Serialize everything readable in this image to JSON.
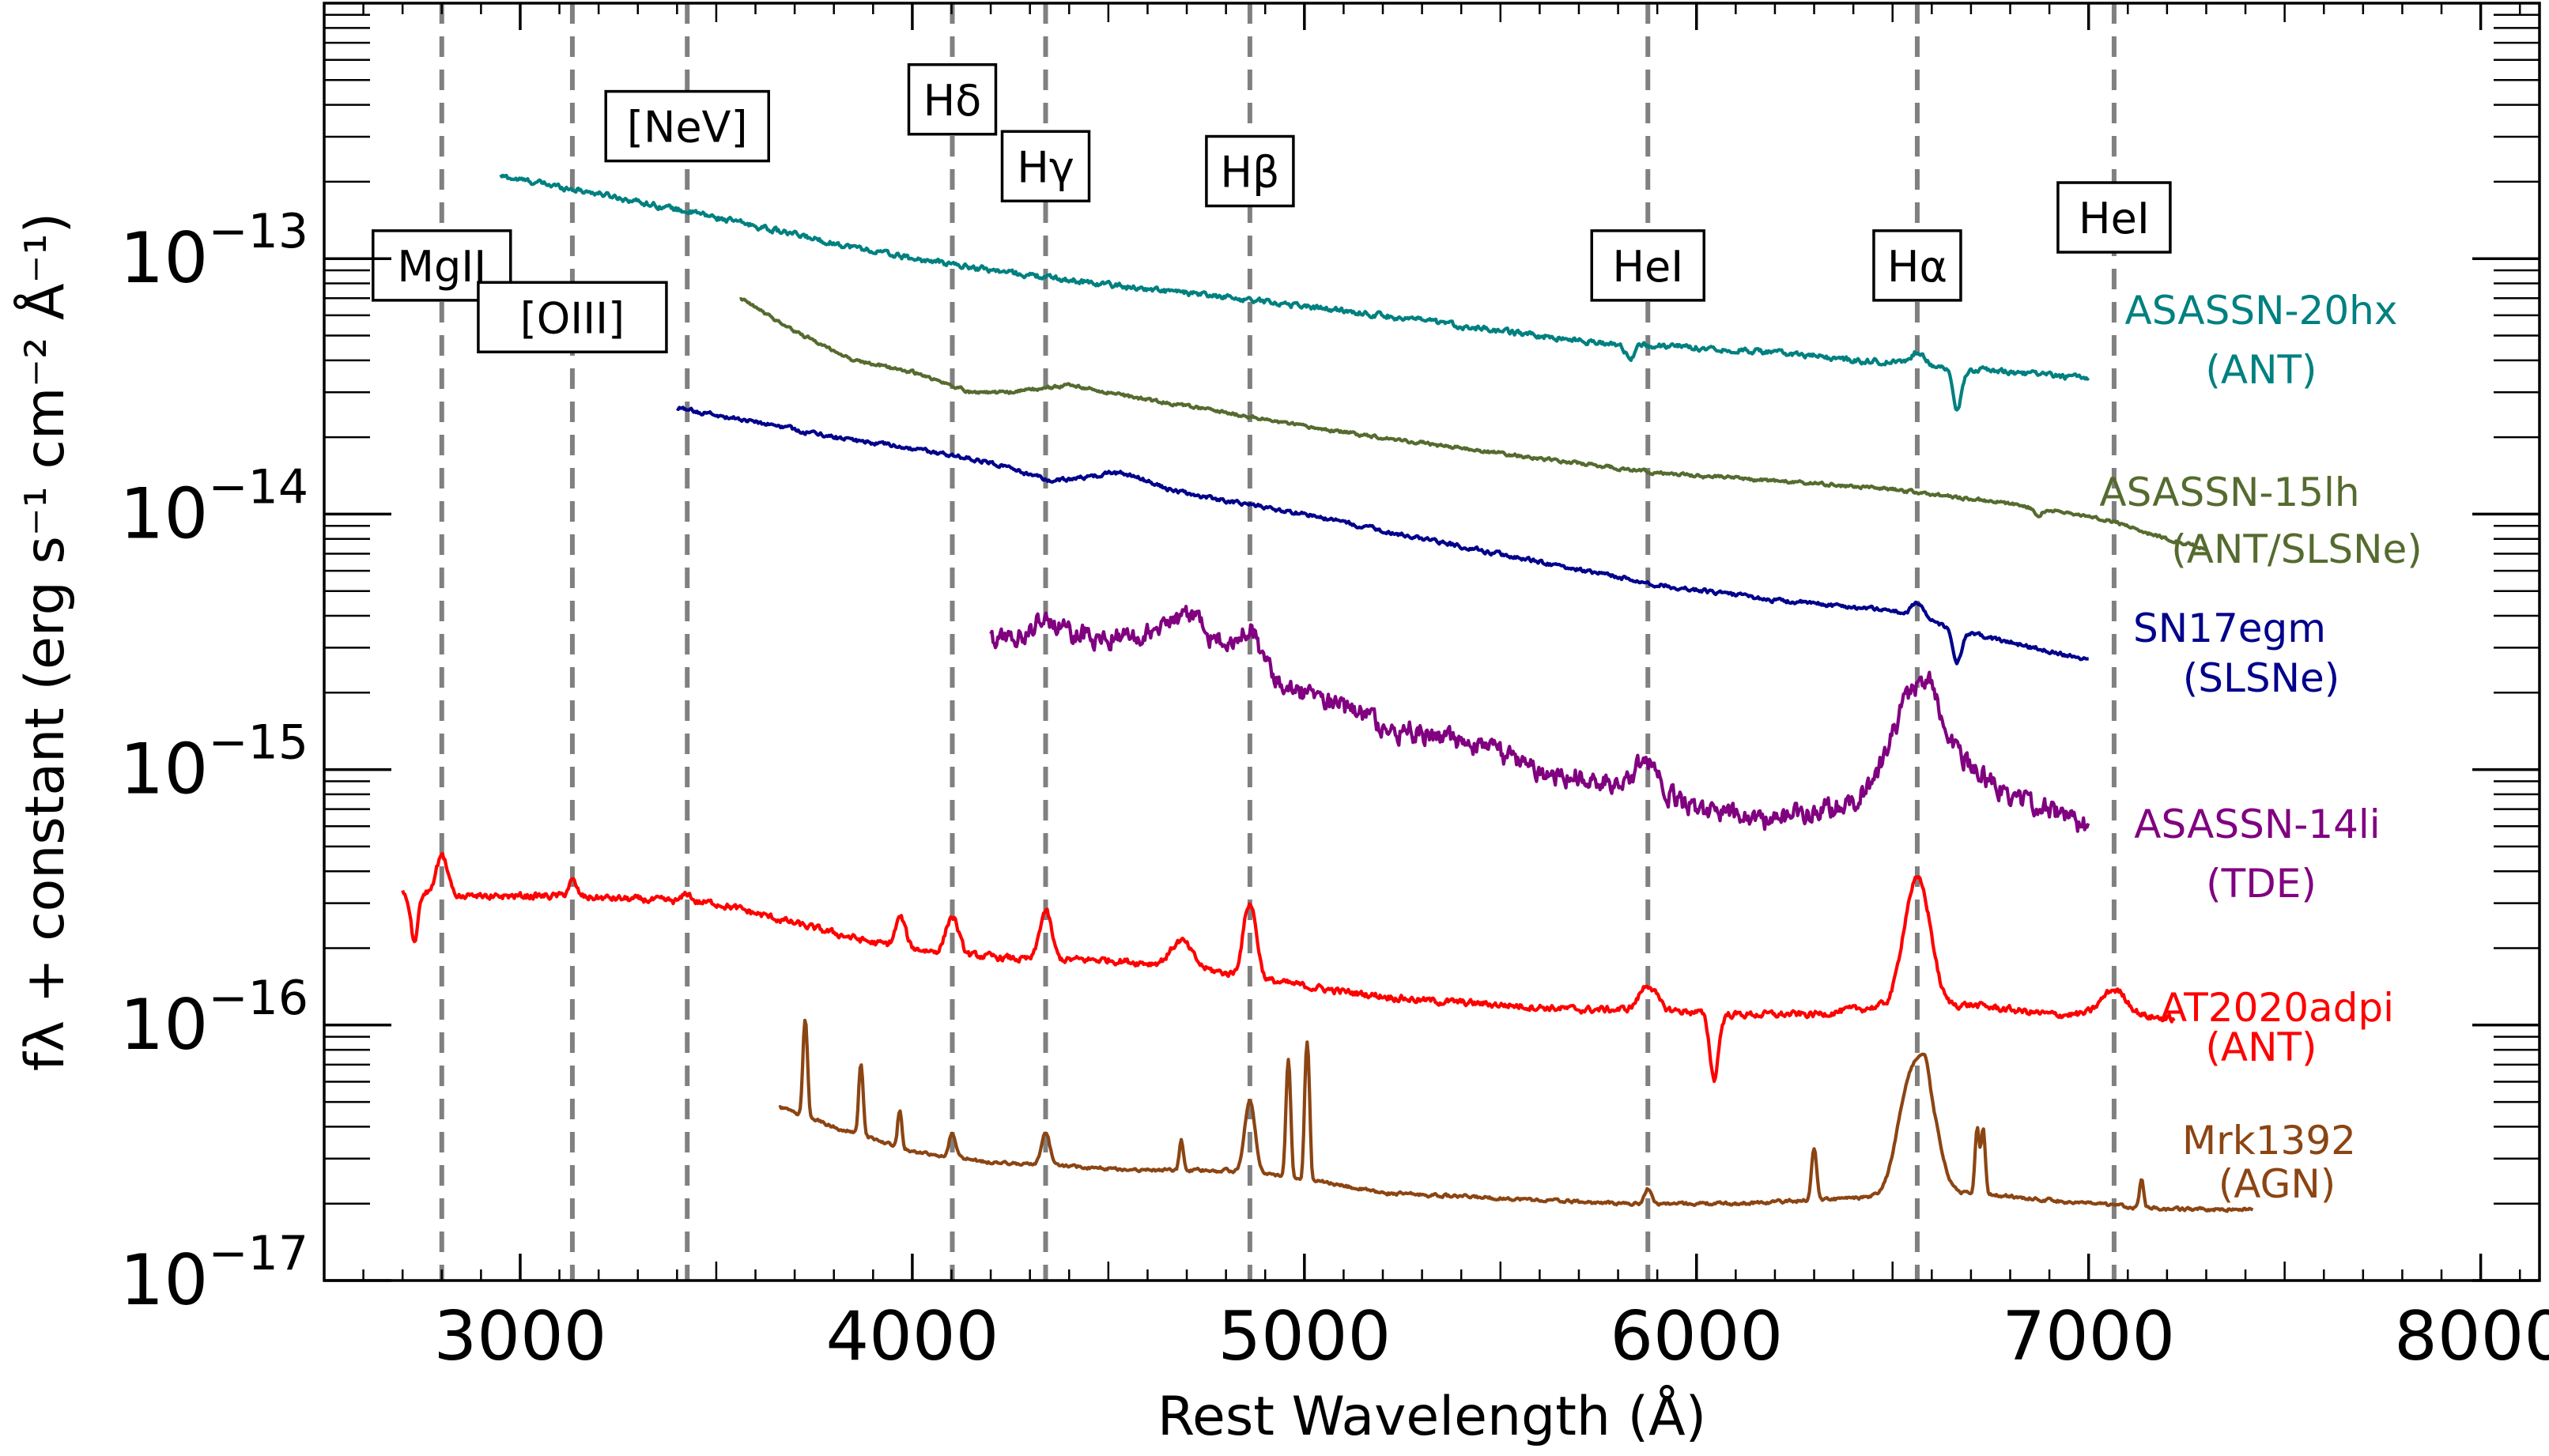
{
  "chart_data": {
    "type": "line",
    "xlabel": "Rest Wavelength (Å)",
    "ylabel": "fλ + constant (erg s⁻¹ cm⁻² Å⁻¹)",
    "xlim": [
      2500,
      8150
    ],
    "ylim": [
      1e-17,
      1e-12
    ],
    "yscale": "log",
    "grid": false,
    "legend": "none",
    "x_ticks": [
      3000,
      4000,
      5000,
      6000,
      7000,
      8000
    ],
    "y_ticks": [
      {
        "value": 1e-13,
        "mantissa": "10",
        "exponent": "−13"
      },
      {
        "value": 1e-14,
        "mantissa": "10",
        "exponent": "−14"
      },
      {
        "value": 1e-15,
        "mantissa": "10",
        "exponent": "−15"
      },
      {
        "value": 1e-16,
        "mantissa": "10",
        "exponent": "−16"
      },
      {
        "value": 1e-17,
        "mantissa": "10",
        "exponent": "−17"
      }
    ],
    "line_markers": [
      {
        "label": "MgII",
        "x": 2800,
        "label_y": 9.4e-14
      },
      {
        "label": "[OIII]",
        "x": 3133,
        "label_y": 5.9e-14
      },
      {
        "label": "[NeV]",
        "x": 3426,
        "label_y": 3.3e-13
      },
      {
        "label": "Hδ",
        "x": 4102,
        "label_y": 4.2e-13
      },
      {
        "label": "Hγ",
        "x": 4340,
        "label_y": 2.3e-13
      },
      {
        "label": "Hβ",
        "x": 4861,
        "label_y": 2.2e-13
      },
      {
        "label": "HeI",
        "x": 5876,
        "label_y": 9.4e-14
      },
      {
        "label": "Hα",
        "x": 6563,
        "label_y": 9.4e-14
      },
      {
        "label": "HeI",
        "x": 7065,
        "label_y": 1.45e-13
      }
    ],
    "series": [
      {
        "name": "ASASSN-20hx",
        "class": "(ANT)",
        "color": "#008080",
        "noise": 0.02,
        "x": [
          2950,
          3200,
          3500,
          3800,
          4000,
          4300,
          4600,
          4900,
          5200,
          5500,
          5800,
          6000,
          6200,
          6400,
          6550,
          6700,
          7000
        ],
        "y": [
          2.1e-13,
          1.8e-13,
          1.45e-13,
          1.15e-13,
          1e-13,
          8.6e-14,
          7.6e-14,
          6.8e-14,
          6e-14,
          5.2e-14,
          4.6e-14,
          4.5e-14,
          4.3e-14,
          4e-14,
          3.9e-14,
          3.7e-14,
          3.4e-14
        ],
        "features": [
          {
            "x": 6665,
            "w": 12,
            "amp": -0.32
          },
          {
            "x": 5830,
            "w": 10,
            "amp": -0.12
          },
          {
            "x": 6565,
            "w": 15,
            "amp": 0.12
          }
        ]
      },
      {
        "name": "ASASSN-15lh",
        "class": "(ANT/SLSNe)",
        "color": "#556b2f",
        "noise": 0.012,
        "x": [
          3560,
          3700,
          3850,
          4000,
          4150,
          4250,
          4400,
          4600,
          4800,
          5000,
          5300,
          5600,
          5900,
          6200,
          6500,
          6800,
          7050,
          7200,
          7300
        ],
        "y": [
          7e-14,
          5.2e-14,
          4e-14,
          3.6e-14,
          3e-14,
          3e-14,
          3.2e-14,
          2.8e-14,
          2.5e-14,
          2.2e-14,
          1.9e-14,
          1.65e-14,
          1.45e-14,
          1.35e-14,
          1.25e-14,
          1.1e-14,
          9.5e-15,
          8e-15,
          7.3e-15
        ],
        "features": [
          {
            "x": 6870,
            "w": 10,
            "amp": -0.07
          }
        ]
      },
      {
        "name": "SN17egm",
        "class": "(SLSNe)",
        "color": "#00008b",
        "noise": 0.015,
        "x": [
          3400,
          3600,
          3800,
          4000,
          4200,
          4350,
          4500,
          4700,
          5000,
          5300,
          5600,
          5900,
          6200,
          6500,
          6700,
          7000
        ],
        "y": [
          2.6e-14,
          2.3e-14,
          2e-14,
          1.8e-14,
          1.6e-14,
          1.35e-14,
          1.4e-14,
          1.2e-14,
          1e-14,
          8e-15,
          6.5e-15,
          5.3e-15,
          4.6e-15,
          4.2e-15,
          3.4e-15,
          2.7e-15
        ],
        "features": [
          {
            "x": 6565,
            "w": 15,
            "amp": 0.15
          },
          {
            "x": 6665,
            "w": 12,
            "amp": -0.25
          },
          {
            "x": 4550,
            "w": 50,
            "amp": 0.06
          }
        ]
      },
      {
        "name": "ASASSN-14li",
        "class": "(TDE)",
        "color": "#800080",
        "noise": 0.08,
        "x": [
          4200,
          4400,
          4600,
          4800,
          5000,
          5200,
          5400,
          5600,
          5800,
          6000,
          6200,
          6400,
          6600,
          6800,
          7000
        ],
        "y": [
          3.3e-15,
          3.4e-15,
          3.3e-15,
          3.1e-15,
          2e-15,
          1.5e-15,
          1.3e-15,
          1e-15,
          9e-16,
          7e-16,
          6.3e-16,
          7.5e-16,
          1.3e-15,
          8e-16,
          6e-16
        ],
        "features": [
          {
            "x": 4340,
            "w": 25,
            "amp": 0.2
          },
          {
            "x": 4686,
            "w": 50,
            "amp": 0.25
          },
          {
            "x": 4861,
            "w": 22,
            "amp": 0.3
          },
          {
            "x": 5876,
            "w": 30,
            "amp": 0.3
          },
          {
            "x": 6563,
            "w": 50,
            "amp": 0.85
          }
        ]
      },
      {
        "name": "AT2020adpi",
        "class": "(ANT)",
        "color": "#ff0000",
        "noise": 0.025,
        "x": [
          2700,
          2900,
          3100,
          3300,
          3500,
          3700,
          3900,
          4100,
          4300,
          4500,
          4700,
          4900,
          5100,
          5300,
          5500,
          5700,
          5900,
          6100,
          6300,
          6500,
          6700,
          6900,
          7100,
          7220
        ],
        "y": [
          3.3e-16,
          3.2e-16,
          3.2e-16,
          3.1e-16,
          3e-16,
          2.5e-16,
          2.1e-16,
          1.9e-16,
          1.8e-16,
          1.8e-16,
          1.7e-16,
          1.5e-16,
          1.35e-16,
          1.25e-16,
          1.2e-16,
          1.15e-16,
          1.15e-16,
          1.1e-16,
          1.1e-16,
          1.2e-16,
          1.2e-16,
          1.1e-16,
          1.1e-16,
          1.05e-16
        ],
        "features": [
          {
            "x": 2730,
            "w": 10,
            "amp": -0.35
          },
          {
            "x": 2800,
            "w": 14,
            "amp": 0.4
          },
          {
            "x": 3133,
            "w": 10,
            "amp": 0.15
          },
          {
            "x": 3426,
            "w": 10,
            "amp": 0.08
          },
          {
            "x": 3970,
            "w": 12,
            "amp": 0.3
          },
          {
            "x": 4102,
            "w": 15,
            "amp": 0.4
          },
          {
            "x": 4340,
            "w": 14,
            "amp": 0.55
          },
          {
            "x": 4686,
            "w": 25,
            "amp": 0.25
          },
          {
            "x": 4861,
            "w": 15,
            "amp": 0.95
          },
          {
            "x": 5876,
            "w": 20,
            "amp": 0.25
          },
          {
            "x": 6045,
            "w": 12,
            "amp": -0.45
          },
          {
            "x": 6563,
            "w": 28,
            "amp": 2.1
          },
          {
            "x": 7065,
            "w": 30,
            "amp": 0.25
          }
        ]
      },
      {
        "name": "Mrk1392",
        "class": "(AGN)",
        "color": "#8b4513",
        "noise": 0.012,
        "x": [
          3660,
          3800,
          4000,
          4200,
          4400,
          4600,
          4800,
          5000,
          5200,
          5500,
          5800,
          6100,
          6400,
          6700,
          7000,
          7200,
          7420
        ],
        "y": [
          4.8e-17,
          4e-17,
          3.2e-17,
          2.9e-17,
          2.8e-17,
          2.7e-17,
          2.7e-17,
          2.5e-17,
          2.2e-17,
          2.1e-17,
          2e-17,
          2e-17,
          2.1e-17,
          2.2e-17,
          2e-17,
          1.9e-17,
          1.9e-17
        ],
        "features": [
          {
            "x": 3727,
            "w": 5,
            "amp": 1.4
          },
          {
            "x": 3869,
            "w": 5,
            "amp": 0.9
          },
          {
            "x": 3968,
            "w": 5,
            "amp": 0.4
          },
          {
            "x": 4102,
            "w": 8,
            "amp": 0.25
          },
          {
            "x": 4340,
            "w": 10,
            "amp": 0.35
          },
          {
            "x": 4686,
            "w": 5,
            "amp": 0.3
          },
          {
            "x": 4861,
            "w": 12,
            "amp": 0.9
          },
          {
            "x": 4959,
            "w": 5,
            "amp": 1.9
          },
          {
            "x": 5007,
            "w": 5,
            "amp": 2.5
          },
          {
            "x": 5876,
            "w": 8,
            "amp": 0.15
          },
          {
            "x": 6300,
            "w": 6,
            "amp": 0.6
          },
          {
            "x": 6563,
            "w": 35,
            "amp": 2.4
          },
          {
            "x": 6583,
            "w": 8,
            "amp": 0.5
          },
          {
            "x": 6716,
            "w": 5,
            "amp": 0.8
          },
          {
            "x": 6731,
            "w": 5,
            "amp": 0.8
          },
          {
            "x": 7135,
            "w": 5,
            "amp": 0.3
          }
        ]
      }
    ]
  }
}
